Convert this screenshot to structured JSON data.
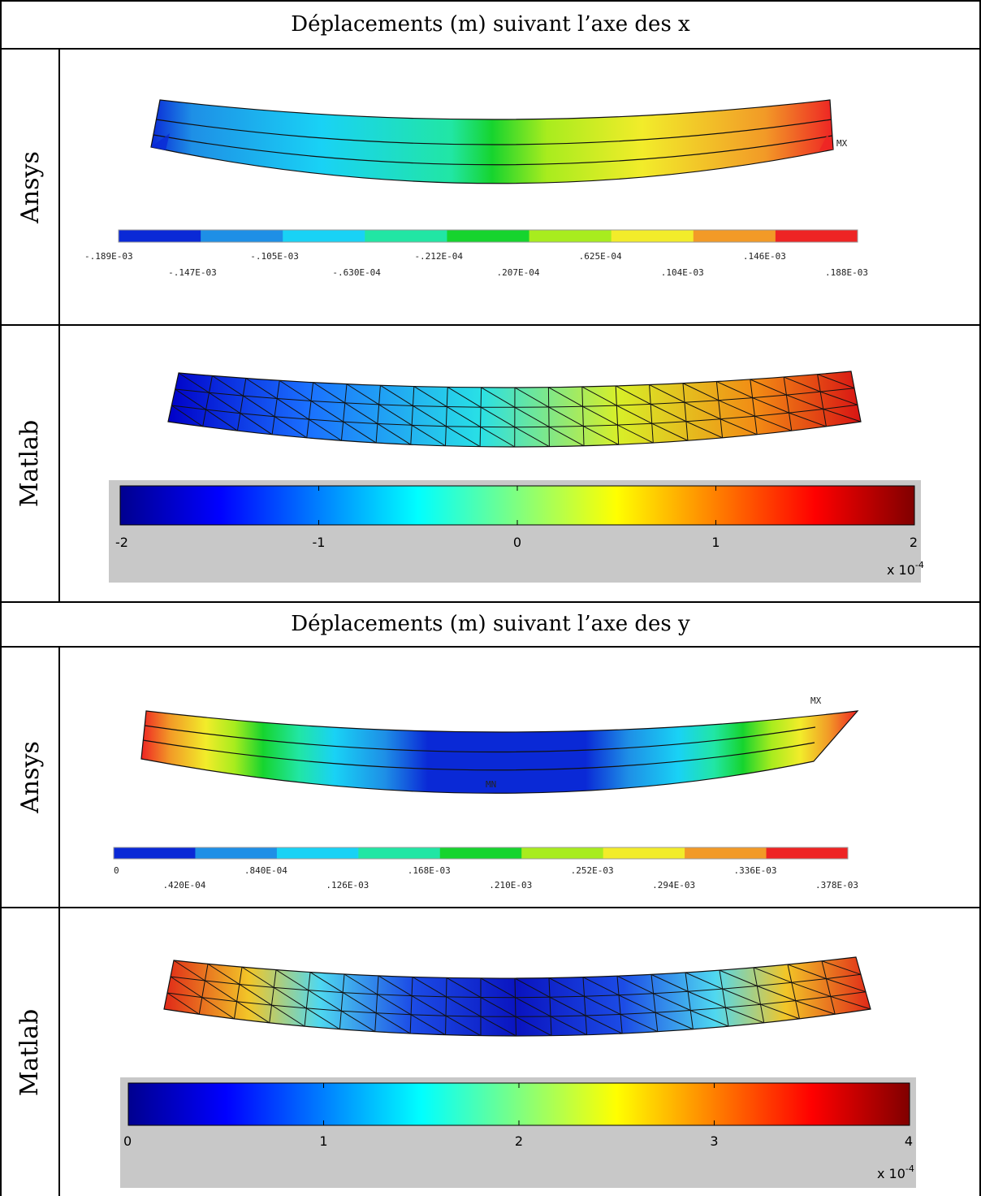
{
  "panels": [
    {
      "title": "Déplacements (m) suivant l’axe des x",
      "ansys": {
        "row_label": "Ansys",
        "mx_label": "MX",
        "legend_colors": [
          "#0a29d6",
          "#1e8fe6",
          "#19d2f5",
          "#21e6a4",
          "#16d42e",
          "#a8ec1e",
          "#f2ec2a",
          "#f29a27",
          "#ee2424"
        ],
        "legend_values": [
          "-.189E-03",
          "-.147E-03",
          "-.105E-03",
          "-.630E-04",
          "-.212E-04",
          ".207E-04",
          ".625E-04",
          ".104E-03",
          ".146E-03",
          ".188E-03"
        ]
      },
      "matlab": {
        "row_label": "Matlab",
        "ticks": [
          "-2",
          "-1",
          "0",
          "1",
          "2"
        ],
        "exponent_label": "x 10",
        "exponent_power": "-4"
      }
    },
    {
      "title": "Déplacements (m) suivant l’axe des y",
      "ansys": {
        "row_label": "Ansys",
        "mx_label": "MX",
        "mn_label": "MN",
        "legend_colors": [
          "#0a29d6",
          "#1e8fe6",
          "#19d2f5",
          "#21e6a4",
          "#16d42e",
          "#a8ec1e",
          "#f2ec2a",
          "#f29a27",
          "#ee2424"
        ],
        "legend_values": [
          "0",
          ".420E-04",
          ".840E-04",
          ".126E-03",
          ".168E-03",
          ".210E-03",
          ".252E-03",
          ".294E-03",
          ".336E-03",
          ".378E-03"
        ]
      },
      "matlab": {
        "row_label": "Matlab",
        "ticks": [
          "0",
          "1",
          "2",
          "3",
          "4"
        ],
        "exponent_label": "x 10",
        "exponent_power": "-4"
      }
    }
  ]
}
